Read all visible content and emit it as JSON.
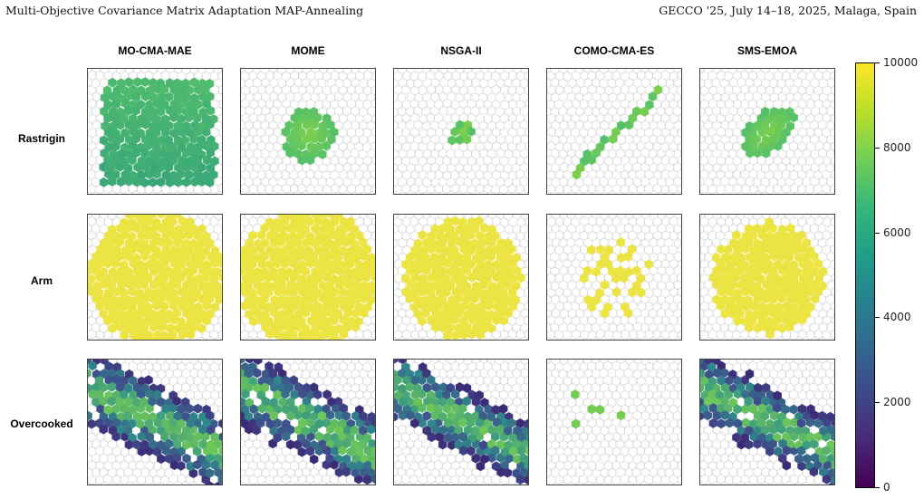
{
  "header": {
    "left": "Multi-Objective Covariance Matrix Adaptation MAP-Annealing",
    "right": "GECCO '25, July 14–18, 2025, Malaga, Spain"
  },
  "columns": [
    "MO-CMA-MAE",
    "MOME",
    "NSGA-II",
    "COMO-CMA-ES",
    "SMS-EMOA"
  ],
  "rows": [
    "Rastrigin",
    "Arm",
    "Overcooked"
  ],
  "colorbar": {
    "colormap": "viridis",
    "range": [
      0,
      10000
    ],
    "ticks": [
      "10000",
      "8000",
      "6000",
      "4000",
      "2000",
      "0"
    ]
  },
  "colors": {
    "rastrigin_fill": "#55c06a",
    "rastrigin_center": "#7ed04a",
    "arm_fill": "#ece443",
    "overcooked_low": "#3f4a8a",
    "overcooked_mid": "#2e8f8a",
    "overcooked_high": "#74cc54",
    "cell_edge": "#d0d0d0"
  }
}
